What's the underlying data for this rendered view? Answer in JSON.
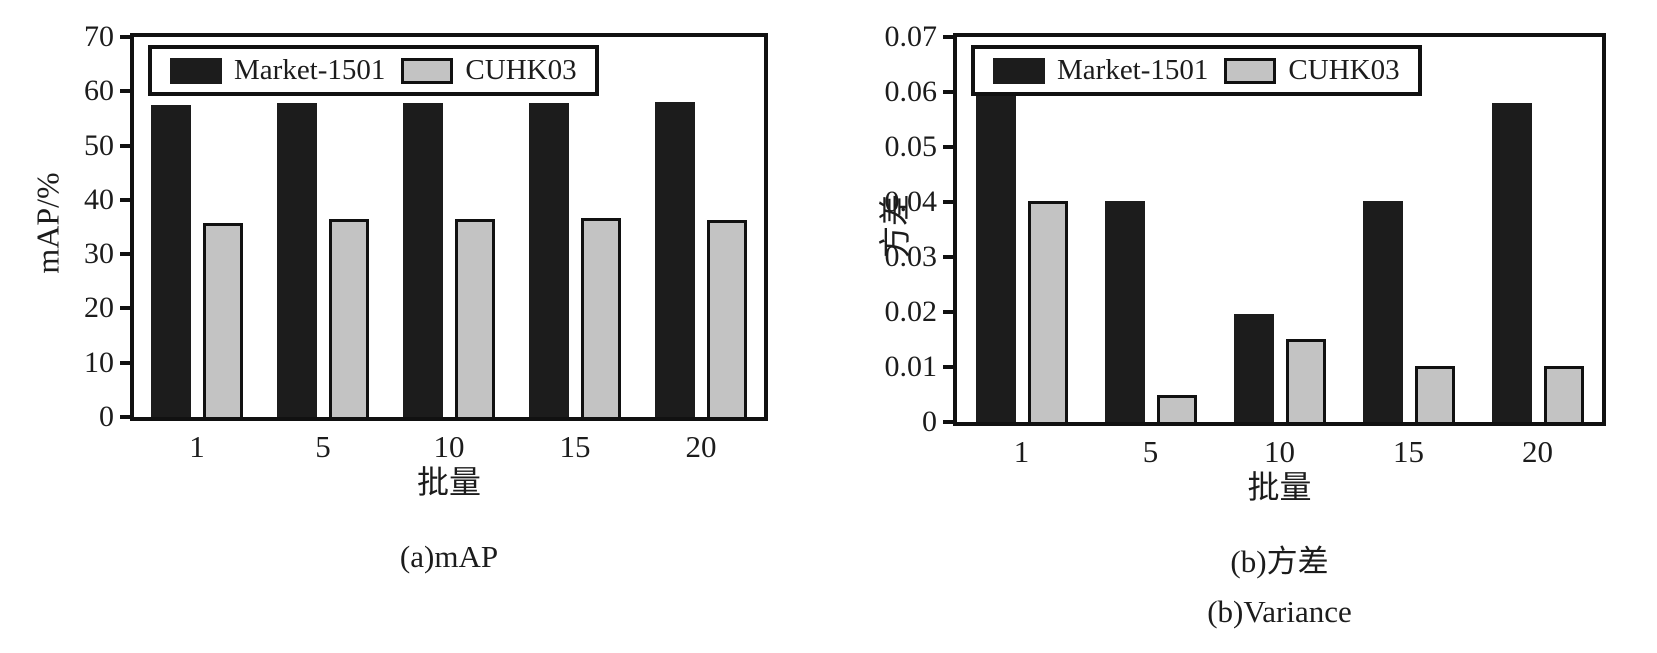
{
  "figure": {
    "background": "#ffffff",
    "text_color": "#1c1c1c",
    "axis_color": "#111111"
  },
  "chart_data": [
    {
      "type": "bar",
      "caption": "(a)mAP",
      "xlabel": "批量",
      "ylabel": "mAP/%",
      "categories": [
        "1",
        "5",
        "10",
        "15",
        "20"
      ],
      "series": [
        {
          "name": "Market-1501",
          "color": "#1c1c1c",
          "edged": false,
          "values": [
            57.5,
            57.8,
            57.8,
            57.9,
            58.0
          ]
        },
        {
          "name": "CUHK03",
          "color": "#c3c3c3",
          "edged": true,
          "values": [
            35.7,
            36.4,
            36.5,
            36.7,
            36.3
          ]
        }
      ],
      "ylim": [
        0,
        70
      ],
      "yticks": [
        "0",
        "10",
        "20",
        "30",
        "40",
        "50",
        "60",
        "70"
      ],
      "legend_position": "top-left",
      "grid": false
    },
    {
      "type": "bar",
      "caption": "(b)方差",
      "caption_en": "(b)Variance",
      "xlabel": "批量",
      "ylabel": "方差",
      "categories": [
        "1",
        "5",
        "10",
        "15",
        "20"
      ],
      "series": [
        {
          "name": "Market-1501",
          "color": "#1c1c1c",
          "edged": false,
          "values": [
            0.0603,
            0.0401,
            0.0196,
            0.0401,
            0.058
          ]
        },
        {
          "name": "CUHK03",
          "color": "#c3c3c3",
          "edged": true,
          "values": [
            0.0401,
            0.005,
            0.0151,
            0.0102,
            0.0102
          ]
        }
      ],
      "ylim": [
        0,
        0.07
      ],
      "yticks": [
        "0",
        "0.01",
        "0.02",
        "0.03",
        "0.04",
        "0.05",
        "0.06",
        "0.07"
      ],
      "legend_position": "top-left",
      "grid": false
    }
  ]
}
